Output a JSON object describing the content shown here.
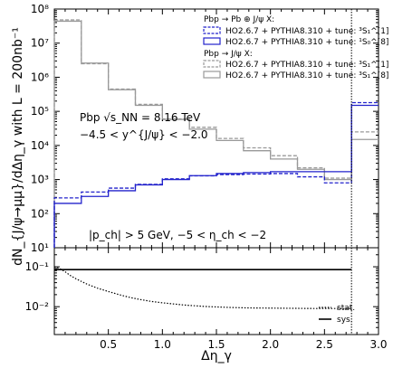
{
  "chart_data": {
    "type": "line",
    "panels": [
      {
        "id": "main",
        "y_scale": "log",
        "ylim": [
          10,
          100000000
        ],
        "xlim": [
          0,
          3.0
        ],
        "ylabel": "dN_{J/ψ→μμ}/dΔη_γ with L = 200nb⁻¹",
        "y_tick_labels": [
          "10¹",
          "10²",
          "10³",
          "10⁴",
          "10⁵",
          "10⁶",
          "10⁷",
          "10⁸"
        ],
        "bin_edges": [
          0,
          0.25,
          0.5,
          0.75,
          1.0,
          1.25,
          1.5,
          1.75,
          2.0,
          2.25,
          2.5,
          2.75,
          3.0
        ],
        "series": [
          {
            "name": "HO2.6.7 + PYTHIA8.310 + tune: ³S₁^[1]",
            "group": "Pbp → Pb ⊕ J/ψ X:",
            "color": "#2222cc",
            "style": "dashed",
            "values": [
              290,
              430,
              560,
              720,
              1050,
              1280,
              1400,
              1450,
              1500,
              1200,
              800,
              180000
            ]
          },
          {
            "name": "HO2.6.7 + PYTHIA8.310 + tune: ¹S₀^[8]",
            "group": "Pbp → Pb ⊕ J/ψ X:",
            "color": "#2222cc",
            "style": "solid",
            "values": [
              200,
              320,
              470,
              700,
              1000,
              1300,
              1500,
              1600,
              1700,
              1700,
              1700,
              150000
            ]
          },
          {
            "name": "HO2.6.7 + PYTHIA8.310 + tune: ³S₁^[1]",
            "group": "Pbp → J/ψ X:",
            "color": "#999999",
            "style": "dashed",
            "values": [
              48000000,
              2500000,
              450000,
              160000,
              60000,
              34000,
              16000,
              8500,
              5000,
              2200,
              1100,
              25000
            ]
          },
          {
            "name": "HO2.6.7 + PYTHIA8.310 + tune: ³S₁^[8]",
            "group": "Pbp → J/ψ X:",
            "color": "#999999",
            "style": "solid",
            "values": [
              44000000,
              2600000,
              430000,
              150000,
              58000,
              30000,
              14000,
              7000,
              4000,
              2000,
              1000,
              15000
            ]
          }
        ],
        "vertical_line_x": 2.75
      },
      {
        "id": "ratio",
        "y_scale": "log",
        "ylim": [
          0.002,
          0.3
        ],
        "xlim": [
          0,
          3.0
        ],
        "xlabel": "Δη_γ",
        "y_tick_labels": [
          "10⁻²",
          "10⁻¹"
        ],
        "x_tick_labels": [
          "0.5",
          "1.0",
          "1.5",
          "2.0",
          "2.5",
          "3.0"
        ],
        "series": [
          {
            "name": "stat.",
            "style": "dotted",
            "x": [
              0.0,
              0.05,
              0.1,
              0.15,
              0.2,
              0.3,
              0.4,
              0.5,
              0.6,
              0.7,
              0.8,
              0.9,
              1.0,
              1.2,
              1.4,
              1.6,
              1.8,
              2.0,
              2.2,
              2.4,
              2.6,
              2.75
            ],
            "values": [
              0.1,
              0.09,
              0.075,
              0.06,
              0.05,
              0.037,
              0.029,
              0.024,
              0.02,
              0.017,
              0.015,
              0.0135,
              0.0125,
              0.011,
              0.0101,
              0.0096,
              0.0093,
              0.0092,
              0.0091,
              0.009,
              0.009,
              0.009
            ]
          },
          {
            "name": "sys.",
            "style": "solid",
            "x": [
              0.0,
              2.75
            ],
            "values": [
              0.085,
              0.085
            ]
          }
        ],
        "vertical_line_x": 2.75
      }
    ],
    "legend": {
      "position": "top-right",
      "group1_header": "Pbp → Pb ⊕ J/ψ X:",
      "group2_header": "Pbp → J/ψ X:"
    },
    "annotations": {
      "system": "Pbp √s_NN = 8.16 TeV",
      "rapidity": "−4.5 < y^{J/ψ} < −2.0",
      "cuts": "|p_ch| > 5 GeV, −5 < η_ch < −2"
    },
    "ratio_legend": {
      "stat": "stat.",
      "sys": "sys."
    }
  }
}
